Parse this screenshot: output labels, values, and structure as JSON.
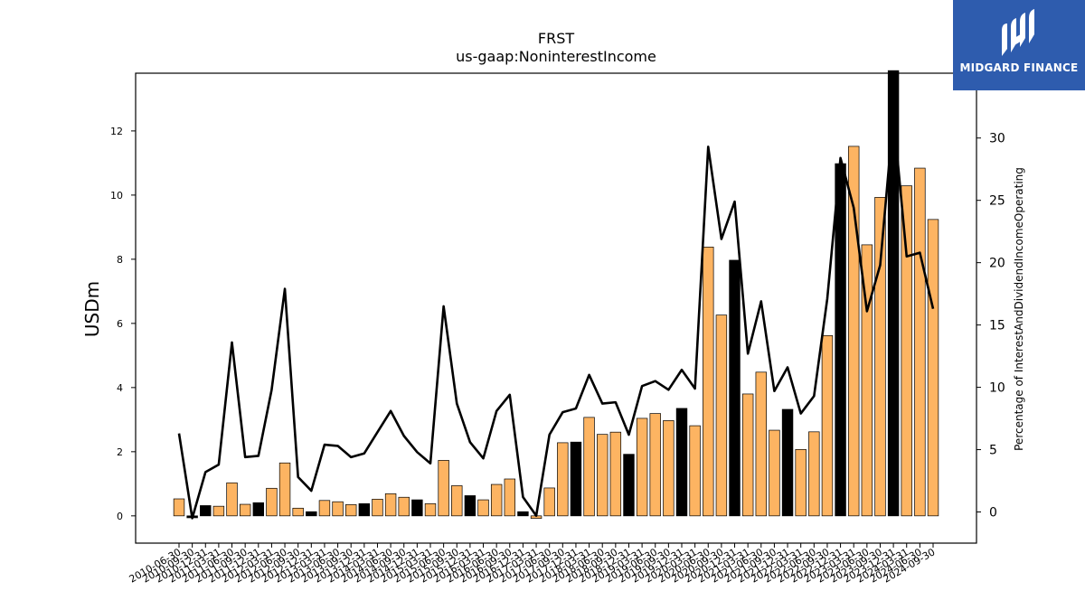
{
  "chart_data": {
    "type": "bar",
    "title": "FRST",
    "subtitle": "us-gaap:NoninterestIncome",
    "ylabel": "USDm",
    "y2label": "Percentage of InterestAndDividendIncomeOperating",
    "ylim": [
      -0.85,
      13.8
    ],
    "y2lim": [
      -2.5,
      35.2
    ],
    "yticks": [
      0,
      2,
      4,
      6,
      8,
      10,
      12
    ],
    "y2ticks": [
      0,
      5,
      10,
      15,
      20,
      25,
      30
    ],
    "categories": [
      "2010-06-30",
      "2010-09-30",
      "2010-12-31",
      "2011-03-31",
      "2011-06-30",
      "2011-09-30",
      "2011-12-31",
      "2012-03-31",
      "2012-06-30",
      "2012-09-30",
      "2012-12-31",
      "2013-03-31",
      "2013-06-30",
      "2013-09-30",
      "2013-12-31",
      "2014-03-31",
      "2014-06-30",
      "2014-09-30",
      "2014-12-31",
      "2015-03-31",
      "2015-06-30",
      "2015-09-30",
      "2015-12-31",
      "2016-03-31",
      "2016-06-30",
      "2016-09-30",
      "2016-12-31",
      "2017-03-31",
      "2017-06-30",
      "2017-09-30",
      "2017-12-31",
      "2018-03-31",
      "2018-06-30",
      "2018-09-30",
      "2018-12-31",
      "2019-03-31",
      "2019-06-30",
      "2019-09-30",
      "2019-12-31",
      "2020-03-31",
      "2020-06-30",
      "2020-09-30",
      "2020-12-31",
      "2021-03-31",
      "2021-06-30",
      "2021-09-30",
      "2021-12-31",
      "2022-03-31",
      "2022-06-30",
      "2022-09-30",
      "2022-12-31",
      "2023-03-31",
      "2023-06-30",
      "2023-09-30",
      "2023-12-31",
      "2024-03-31",
      "2024-06-30",
      "2024-09-30"
    ],
    "series": [
      {
        "kind": "bar",
        "values": [
          0.53,
          -0.06,
          0.32,
          0.3,
          1.03,
          0.36,
          0.41,
          0.86,
          1.65,
          0.24,
          0.13,
          0.48,
          0.44,
          0.35,
          0.38,
          0.52,
          0.69,
          0.58,
          0.5,
          0.38,
          1.73,
          0.94,
          0.63,
          0.5,
          0.98,
          1.15,
          0.13,
          -0.08,
          0.87,
          2.28,
          2.3,
          3.07,
          2.54,
          2.61,
          1.92,
          3.04,
          3.19,
          2.97,
          3.35,
          2.81,
          8.38,
          6.26,
          7.97,
          3.8,
          4.48,
          2.67,
          3.32,
          2.07,
          2.62,
          5.62,
          10.98,
          11.52,
          8.45,
          9.93,
          13.88,
          10.29,
          10.84,
          9.24
        ],
        "bar_colors": [
          "#fdb462",
          "#000000",
          "#000000",
          "#fdb462",
          "#fdb462",
          "#fdb462",
          "#000000",
          "#fdb462",
          "#fdb462",
          "#fdb462",
          "#000000",
          "#fdb462",
          "#fdb462",
          "#fdb462",
          "#000000",
          "#fdb462",
          "#fdb462",
          "#fdb462",
          "#000000",
          "#fdb462",
          "#fdb462",
          "#fdb462",
          "#000000",
          "#fdb462",
          "#fdb462",
          "#fdb462",
          "#000000",
          "#fdb462",
          "#fdb462",
          "#fdb462",
          "#000000",
          "#fdb462",
          "#fdb462",
          "#fdb462",
          "#000000",
          "#fdb462",
          "#fdb462",
          "#fdb462",
          "#000000",
          "#fdb462",
          "#fdb462",
          "#fdb462",
          "#000000",
          "#fdb462",
          "#fdb462",
          "#fdb462",
          "#000000",
          "#fdb462",
          "#fdb462",
          "#fdb462",
          "#000000",
          "#fdb462",
          "#fdb462",
          "#fdb462",
          "#000000",
          "#fdb462",
          "#fdb462",
          "#fdb462"
        ]
      },
      {
        "kind": "line",
        "axis": "right",
        "color": "#000000",
        "values": [
          6.3,
          -0.5,
          3.2,
          3.8,
          13.6,
          4.4,
          4.5,
          9.8,
          17.9,
          2.8,
          1.7,
          5.4,
          5.3,
          4.4,
          4.7,
          6.4,
          8.1,
          6.1,
          4.8,
          3.9,
          16.5,
          8.7,
          5.6,
          4.3,
          8.1,
          9.4,
          1.2,
          -0.3,
          6.2,
          8.0,
          8.3,
          11.0,
          8.7,
          8.8,
          6.2,
          10.1,
          10.5,
          9.8,
          11.4,
          9.9,
          29.3,
          21.9,
          24.9,
          12.7,
          16.9,
          9.7,
          11.6,
          7.9,
          9.3,
          17.1,
          28.4,
          24.4,
          16.1,
          19.8,
          31.8,
          20.5,
          20.8,
          16.3
        ]
      }
    ]
  },
  "logo": {
    "text": "MIDGARD FINANCE",
    "background": "#2e5cae"
  }
}
